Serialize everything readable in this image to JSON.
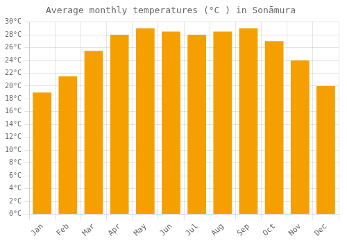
{
  "chart_data": {
    "type": "bar",
    "title": "Average monthly temperatures (°C ) in Sonāmura",
    "categories": [
      "Jan",
      "Feb",
      "Mar",
      "Apr",
      "May",
      "Jun",
      "Jul",
      "Aug",
      "Sep",
      "Oct",
      "Nov",
      "Dec"
    ],
    "values": [
      19,
      21.5,
      25.5,
      28,
      29,
      28.5,
      28,
      28.5,
      29,
      27,
      24,
      20
    ],
    "color": "#F5A000",
    "ylim": [
      0,
      30
    ],
    "yticks": [
      {
        "value": 0,
        "label": "0°C"
      },
      {
        "value": 2,
        "label": "2°C"
      },
      {
        "value": 4,
        "label": "4°C"
      },
      {
        "value": 6,
        "label": "6°C"
      },
      {
        "value": 8,
        "label": "8°C"
      },
      {
        "value": 10,
        "label": "10°C"
      },
      {
        "value": 12,
        "label": "12°C"
      },
      {
        "value": 14,
        "label": "14°C"
      },
      {
        "value": 16,
        "label": "16°C"
      },
      {
        "value": 18,
        "label": "18°C"
      },
      {
        "value": 20,
        "label": "20°C"
      },
      {
        "value": 22,
        "label": "22°C"
      },
      {
        "value": 24,
        "label": "24°C"
      },
      {
        "value": 26,
        "label": "26°C"
      },
      {
        "value": 28,
        "label": "28°C"
      },
      {
        "value": 30,
        "label": "30°C"
      }
    ],
    "grid": true
  }
}
